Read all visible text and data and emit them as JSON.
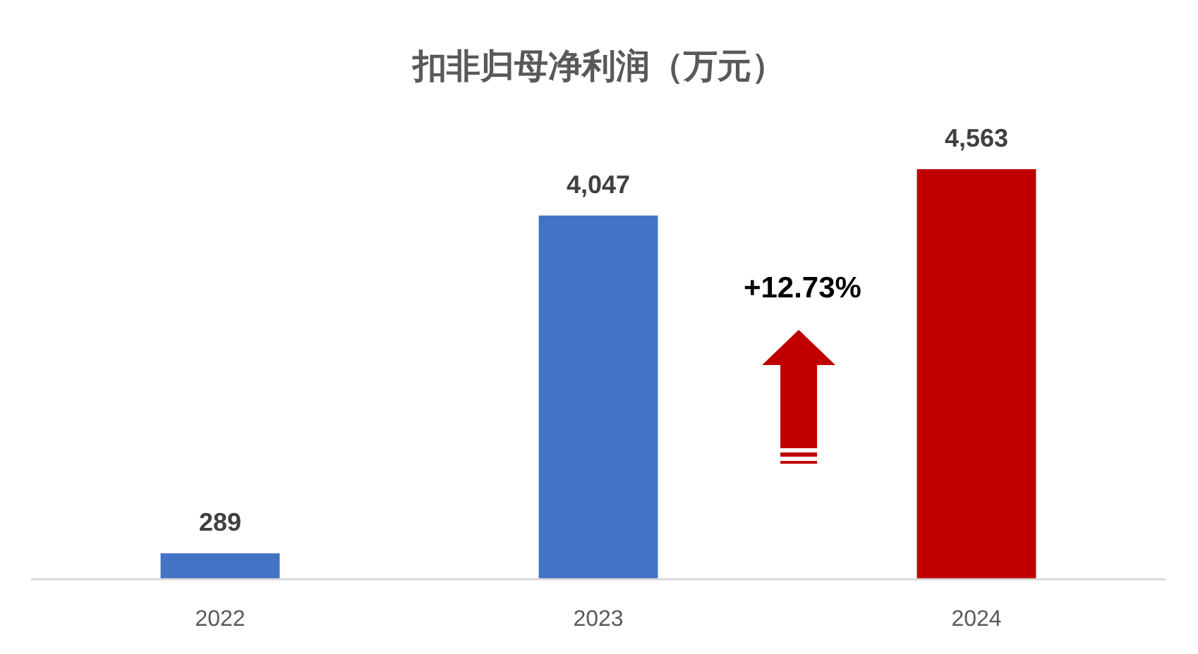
{
  "chart_data": {
    "type": "bar",
    "title": "扣非归母净利润（万元）",
    "categories": [
      "2022",
      "2023",
      "2024"
    ],
    "values": [
      289,
      4047,
      4563
    ],
    "colors": [
      "#4472c4",
      "#4472c4",
      "#c00000"
    ],
    "value_labels": [
      "289",
      "4,047",
      "4,563"
    ],
    "annotations": [
      "+12.73%"
    ]
  }
}
